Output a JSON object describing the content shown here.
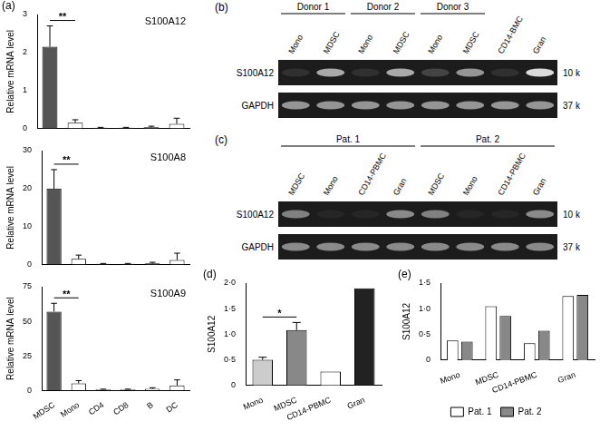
{
  "chart_data": [
    {
      "type": "bar",
      "panel": "(a)",
      "title": "S100A12",
      "y_label": "Relative mRNA level",
      "categories": [
        "MDSC",
        "Mono",
        "CD4",
        "CD8",
        "B",
        "DC"
      ],
      "values": [
        2.15,
        0.15,
        0.02,
        0.02,
        0.03,
        0.12
      ],
      "errors": [
        0.55,
        0.08,
        0.01,
        0.01,
        0.03,
        0.15
      ],
      "colors": [
        "#555555",
        "#ffffff",
        "#ffffff",
        "#ffffff",
        "#ffffff",
        "#ffffff"
      ],
      "ylim": [
        0,
        3
      ],
      "yticks": [
        0,
        1,
        2,
        3
      ],
      "grid": false,
      "tick_labels": "y",
      "annotations": [
        {
          "text": "**",
          "from": "MDSC",
          "to": "Mono"
        }
      ]
    },
    {
      "type": "bar",
      "title": "S100A8",
      "y_label": "Relative mRNA level",
      "categories": [
        "MDSC",
        "Mono",
        "CD4",
        "CD8",
        "B",
        "DC"
      ],
      "values": [
        20,
        1.5,
        0.2,
        0.2,
        0.3,
        1.2
      ],
      "errors": [
        5,
        1,
        0.1,
        0.1,
        0.3,
        1.8
      ],
      "colors": [
        "#555555",
        "#ffffff",
        "#ffffff",
        "#ffffff",
        "#ffffff",
        "#ffffff"
      ],
      "ylim": [
        0,
        30
      ],
      "yticks": [
        0,
        10,
        20,
        30
      ],
      "grid": false,
      "tick_labels": "y",
      "annotations": [
        {
          "text": "**",
          "from": "MDSC",
          "to": "Mono"
        }
      ]
    },
    {
      "type": "bar",
      "title": "S100A9",
      "y_label": "Relative mRNA level",
      "categories": [
        "MDSC",
        "Mono",
        "CD4",
        "CD8",
        "B",
        "DC"
      ],
      "values": [
        57,
        5,
        0.5,
        0.5,
        1,
        3.5
      ],
      "errors": [
        6,
        2,
        0.3,
        0.3,
        0.8,
        4
      ],
      "colors": [
        "#555555",
        "#ffffff",
        "#ffffff",
        "#ffffff",
        "#ffffff",
        "#ffffff"
      ],
      "ylim": [
        0,
        75
      ],
      "yticks": [
        0,
        25,
        50,
        75
      ],
      "grid": false,
      "annotations": [
        {
          "text": "**",
          "from": "MDSC",
          "to": "Mono"
        }
      ]
    },
    {
      "type": "bar",
      "panel": "(d)",
      "y_label": "S100A12",
      "categories": [
        "Mono",
        "MDSC",
        "CD14-PBMC",
        "Gran"
      ],
      "values": [
        0.5,
        1.08,
        0.27,
        1.9
      ],
      "errors": [
        0.05,
        0.15,
        null,
        null
      ],
      "colors": [
        "#cccccc",
        "#888888",
        "#ffffff",
        "#222222"
      ],
      "ylim": [
        0,
        2
      ],
      "yticks": [
        0,
        {
          "value": 0.5,
          "label": "0·5"
        },
        {
          "value": 1,
          "label": "1·0"
        },
        {
          "value": 1.5,
          "label": "1·5"
        },
        {
          "value": 2,
          "label": "2·0"
        }
      ],
      "grid": false,
      "annotations": [
        {
          "text": "*",
          "from": "Mono",
          "to": "MDSC"
        }
      ]
    },
    {
      "type": "bar",
      "panel": "(e)",
      "y_label": "S100A12",
      "categories": [
        "Mono",
        "MDSC",
        "CD14-PBMC",
        "Gran"
      ],
      "series": [
        {
          "name": "Pat. 1",
          "color": "#ffffff",
          "values": [
            0.38,
            1.05,
            0.33,
            1.25
          ]
        },
        {
          "name": "Pat. 2",
          "color": "#888888",
          "values": [
            0.36,
            0.86,
            0.57,
            1.27
          ]
        }
      ],
      "ylim": [
        0,
        1.5
      ],
      "yticks": [
        0,
        {
          "value": 0.5,
          "label": "0·5"
        },
        {
          "value": 1,
          "label": "1·0"
        },
        {
          "value": 1.5,
          "label": "1·5"
        }
      ],
      "grid": false,
      "legend": "bottom"
    }
  ],
  "blots": [
    {
      "panel": "(b)",
      "groups": [
        {
          "label": "Donor 1",
          "lanes": [
            "Mono",
            "MDSC"
          ]
        },
        {
          "label": "Donor 2",
          "lanes": [
            "Mono",
            "MDSC"
          ]
        },
        {
          "label": "Donor 3",
          "lanes": [
            "Mono",
            "MDSC"
          ]
        },
        {
          "label": null,
          "lanes": [
            "CD14-BMC",
            "Gran"
          ]
        }
      ],
      "rows": [
        {
          "label": "S100A12",
          "size": "10 k",
          "signal": [
            0.1,
            0.7,
            0.1,
            0.7,
            0.2,
            0.6,
            0.1,
            0.95
          ]
        },
        {
          "label": "GAPDH",
          "size": "37 k",
          "signal": [
            0.6,
            0.6,
            0.6,
            0.6,
            0.6,
            0.6,
            0.6,
            0.6
          ]
        }
      ]
    },
    {
      "panel": "(c)",
      "groups": [
        {
          "label": "Pat. 1",
          "lanes": [
            "MDSC",
            "Mono",
            "CD14-PBMC",
            "Gran"
          ]
        },
        {
          "label": "Pat. 2",
          "lanes": [
            "MDSC",
            "Mono",
            "CD14-PBMC",
            "Gran"
          ]
        }
      ],
      "rows": [
        {
          "label": "S100A12",
          "size": "10 k",
          "signal": [
            0.5,
            0.05,
            0.05,
            0.55,
            0.5,
            0.05,
            0.05,
            0.55
          ]
        },
        {
          "label": "GAPDH",
          "size": "37 k",
          "signal": [
            0.55,
            0.55,
            0.55,
            0.55,
            0.55,
            0.55,
            0.55,
            0.55
          ]
        }
      ]
    }
  ]
}
